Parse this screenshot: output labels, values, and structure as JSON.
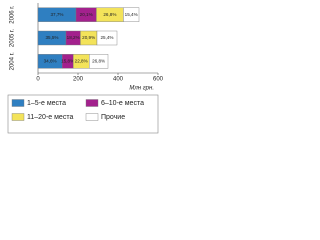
{
  "chart_data": {
    "type": "stacked-bar-horizontal",
    "categories": [
      "2004 г.",
      "2005 г.",
      "2006 г."
    ],
    "xlabel": "Млн грн.",
    "xlim": [
      0,
      600
    ],
    "xticks": [
      0,
      200,
      400,
      600
    ],
    "series": [
      {
        "name": "1–5-е места",
        "color": "#2f7fc1",
        "values": [
          121,
          140,
          190
        ],
        "labels": [
          "34,6%",
          "35,5%",
          "37,7%"
        ]
      },
      {
        "name": "6–10-е места",
        "color": "#a3218d",
        "values": [
          55,
          72,
          102
        ],
        "labels": [
          "15,8%",
          "18,2%",
          "20,1%"
        ]
      },
      {
        "name": "11–20-е места",
        "color": "#f3e35a",
        "values": [
          80,
          83,
          135
        ],
        "labels": [
          "22,8%",
          "20,9%",
          "26,8%"
        ]
      },
      {
        "name": "Прочие",
        "color": "#ffffff",
        "values": [
          94,
          100,
          78
        ],
        "labels": [
          "26,8%",
          "25,4%",
          "15,4%"
        ]
      }
    ]
  }
}
